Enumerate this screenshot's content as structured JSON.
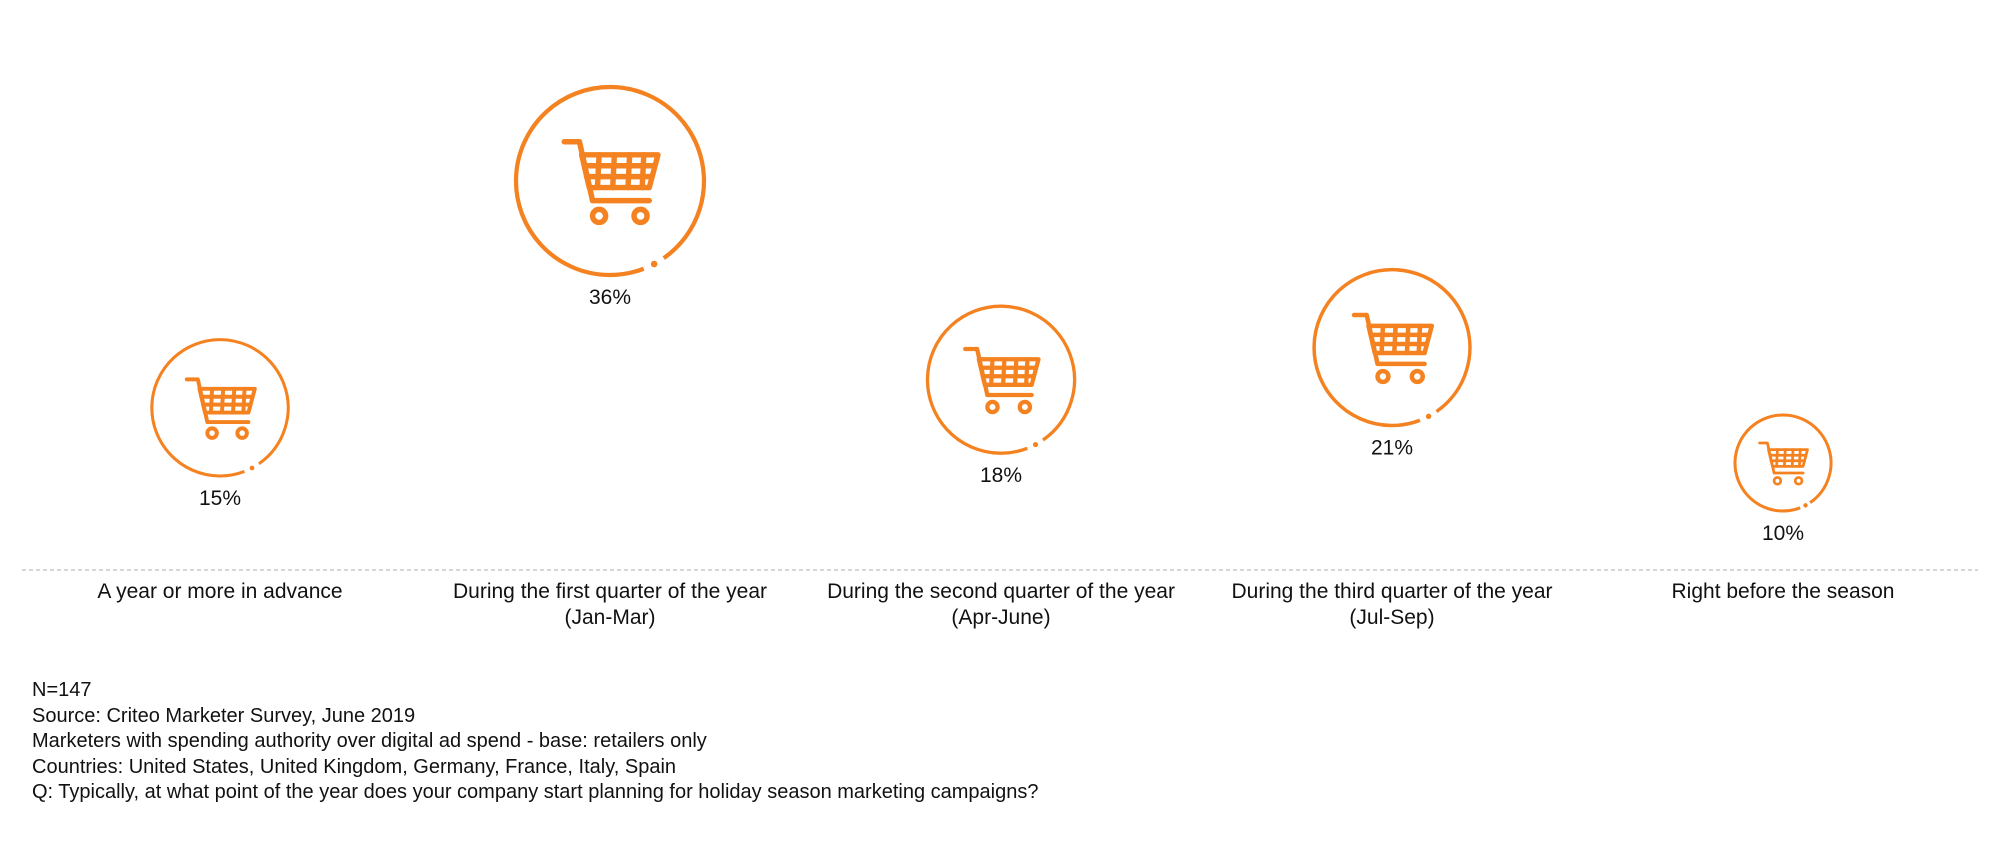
{
  "chart_data": {
    "type": "bubble",
    "unit": "%",
    "categories": [
      [
        "A year or more in advance"
      ],
      [
        "During the first quarter of the year",
        "(Jan-Mar)"
      ],
      [
        "During the second quarter of the year",
        "(Apr-June)"
      ],
      [
        "During the third quarter of the year",
        "(Jul-Sep)"
      ],
      [
        "Right before the season"
      ]
    ],
    "values": [
      15,
      36,
      18,
      21,
      10
    ],
    "value_labels": [
      "15%",
      "36%",
      "18%",
      "21%",
      "10%"
    ],
    "marker_icon": "shopping-cart-icon",
    "baseline": "dashed",
    "grid": false,
    "legend": "none"
  },
  "colors": {
    "accent": "#F58220",
    "text": "#111111",
    "baseline": "#BDBDBD"
  },
  "notes": [
    "N=147",
    "Source: Criteo Marketer Survey, June 2019",
    "Marketers with spending authority over digital ad spend - base: retailers only",
    "Countries: United States, United Kingdom, Germany, France, Italy, Spain",
    "Q: Typically, at what point of the year does your company start planning for holiday season marketing campaigns?"
  ]
}
